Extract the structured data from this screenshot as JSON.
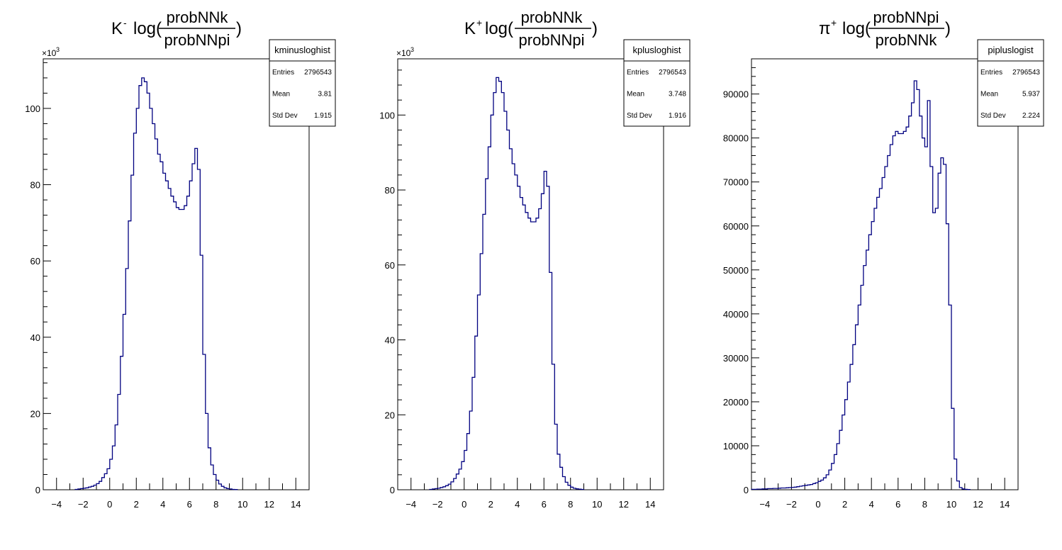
{
  "chart_data": [
    {
      "type": "histogram",
      "title": {
        "prefix": "K",
        "sup": "-",
        "func": "log(",
        "num": "probNNk",
        "den": "probNNpi",
        "close": ")"
      },
      "xlim": [
        -5,
        15
      ],
      "ylim": [
        0,
        113000
      ],
      "y_ticks": [
        0,
        20000,
        40000,
        60000,
        80000,
        100000
      ],
      "y_tick_labels": [
        "0",
        "20",
        "40",
        "60",
        "80",
        "100"
      ],
      "y_exponent_label": "×10",
      "y_exponent_power": "3",
      "x_ticks": [
        -4,
        -2,
        0,
        2,
        4,
        6,
        8,
        10,
        12,
        14
      ],
      "x_tick_labels": [
        "−4",
        "−2",
        "0",
        "2",
        "4",
        "6",
        "8",
        "10",
        "12",
        "14"
      ],
      "stats": {
        "name": "kminusloghist",
        "rows": [
          {
            "label": "Entries",
            "value": "2796543"
          },
          {
            "label": "Mean",
            "value": "3.81"
          },
          {
            "label": "Std Dev",
            "value": "1.915"
          }
        ]
      },
      "bin_start": -2.6,
      "bin_width": 0.2,
      "values": [
        100,
        200,
        300,
        400,
        500,
        700,
        900,
        1200,
        1600,
        2200,
        3200,
        4200,
        5500,
        8000,
        11500,
        17000,
        25000,
        35000,
        46000,
        58000,
        70500,
        82500,
        93500,
        100000,
        106000,
        108000,
        107000,
        104000,
        100000,
        96000,
        92000,
        88000,
        86000,
        83000,
        81000,
        79000,
        77000,
        75500,
        74000,
        73500,
        73500,
        74500,
        77000,
        81000,
        85500,
        89500,
        84000,
        61500,
        35500,
        20000,
        11000,
        6500,
        4000,
        2500,
        1500,
        900,
        500,
        300,
        200,
        100,
        50
      ]
    },
    {
      "type": "histogram",
      "title": {
        "prefix": "K",
        "sup": "+",
        "func": "log(",
        "num": "probNNk",
        "den": "probNNpi",
        "close": ")"
      },
      "xlim": [
        -5,
        15
      ],
      "ylim": [
        0,
        115000
      ],
      "y_ticks": [
        0,
        20000,
        40000,
        60000,
        80000,
        100000
      ],
      "y_tick_labels": [
        "0",
        "20",
        "40",
        "60",
        "80",
        "100"
      ],
      "y_exponent_label": "×10",
      "y_exponent_power": "3",
      "x_ticks": [
        -4,
        -2,
        0,
        2,
        4,
        6,
        8,
        10,
        12,
        14
      ],
      "x_tick_labels": [
        "−4",
        "−2",
        "0",
        "2",
        "4",
        "6",
        "8",
        "10",
        "12",
        "14"
      ],
      "stats": {
        "name": "kplusloghist",
        "rows": [
          {
            "label": "Entries",
            "value": "2796543"
          },
          {
            "label": "Mean",
            "value": "3.748"
          },
          {
            "label": "Std Dev",
            "value": "1.916"
          }
        ]
      },
      "bin_start": -2.6,
      "bin_width": 0.2,
      "values": [
        100,
        200,
        300,
        400,
        600,
        800,
        1100,
        1500,
        2100,
        3000,
        4200,
        5500,
        7500,
        10500,
        15000,
        21000,
        30000,
        41000,
        52000,
        63000,
        73500,
        83000,
        91500,
        100000,
        106000,
        110000,
        109000,
        106000,
        101000,
        96000,
        91000,
        87000,
        84000,
        81000,
        78000,
        76000,
        74000,
        72500,
        71500,
        71500,
        72500,
        75000,
        79000,
        85000,
        81000,
        58000,
        33500,
        17500,
        9500,
        6000,
        3500,
        2000,
        1200,
        700,
        400,
        250,
        150,
        100
      ]
    },
    {
      "type": "histogram",
      "title": {
        "prefix": "π",
        "sup": "+",
        "func": "log(",
        "num": "probNNpi",
        "den": "probNNk",
        "close": ")"
      },
      "xlim": [
        -5,
        15
      ],
      "ylim": [
        0,
        98000
      ],
      "y_ticks": [
        0,
        10000,
        20000,
        30000,
        40000,
        50000,
        60000,
        70000,
        80000,
        90000
      ],
      "y_tick_labels": [
        "0",
        "10000",
        "20000",
        "30000",
        "40000",
        "50000",
        "60000",
        "70000",
        "80000",
        "90000"
      ],
      "y_exponent_label": "",
      "y_exponent_power": "",
      "x_ticks": [
        -4,
        -2,
        0,
        2,
        4,
        6,
        8,
        10,
        12,
        14
      ],
      "x_tick_labels": [
        "−4",
        "−2",
        "0",
        "2",
        "4",
        "6",
        "8",
        "10",
        "12",
        "14"
      ],
      "stats": {
        "name": "pipluslogist",
        "rows": [
          {
            "label": "Entries",
            "value": "2796543"
          },
          {
            "label": "Mean",
            "value": "5.937"
          },
          {
            "label": "Std Dev",
            "value": "2.224"
          }
        ]
      },
      "bin_start": -5,
      "bin_width": 0.2,
      "values": [
        100,
        100,
        150,
        150,
        200,
        200,
        250,
        250,
        300,
        300,
        350,
        400,
        400,
        450,
        500,
        550,
        600,
        700,
        800,
        900,
        1000,
        1100,
        1200,
        1400,
        1600,
        1900,
        2200,
        2700,
        3400,
        4500,
        6000,
        8000,
        10500,
        13500,
        17000,
        20500,
        24500,
        28500,
        33000,
        37500,
        42000,
        46500,
        51000,
        54500,
        58000,
        61000,
        64000,
        66500,
        68500,
        71000,
        73500,
        76000,
        78500,
        80500,
        81500,
        81000,
        81000,
        81500,
        82500,
        85000,
        88000,
        93000,
        91000,
        85000,
        80000,
        78000,
        88500,
        73500,
        63000,
        64000,
        72000,
        75500,
        74000,
        60500,
        42000,
        18500,
        7000,
        2000,
        500,
        200,
        100,
        50
      ]
    }
  ]
}
